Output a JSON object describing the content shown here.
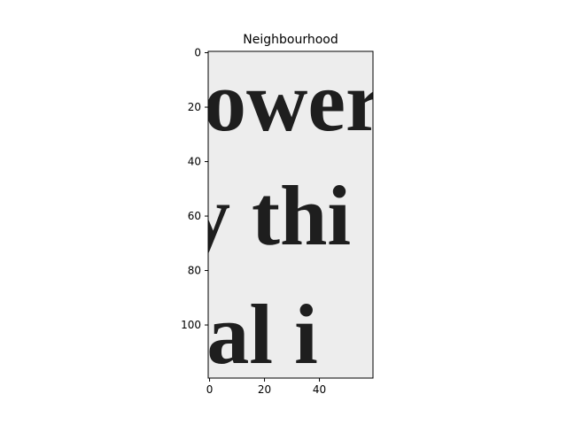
{
  "chart_data": {
    "type": "image",
    "title": "Neighbourhood",
    "xlabel": "",
    "ylabel": "",
    "xlim": [
      -0.5,
      59.5
    ],
    "ylim": [
      119.5,
      -0.5
    ],
    "x_ticks": [
      0,
      20,
      40
    ],
    "y_ticks": [
      0,
      20,
      40,
      60,
      80,
      100
    ],
    "image_text_lines": [
      "ower",
      "y thi",
      "dal i"
    ],
    "colors": {
      "background": "#ededed",
      "ink": "#1e1e1e",
      "frame": "#000000"
    }
  }
}
